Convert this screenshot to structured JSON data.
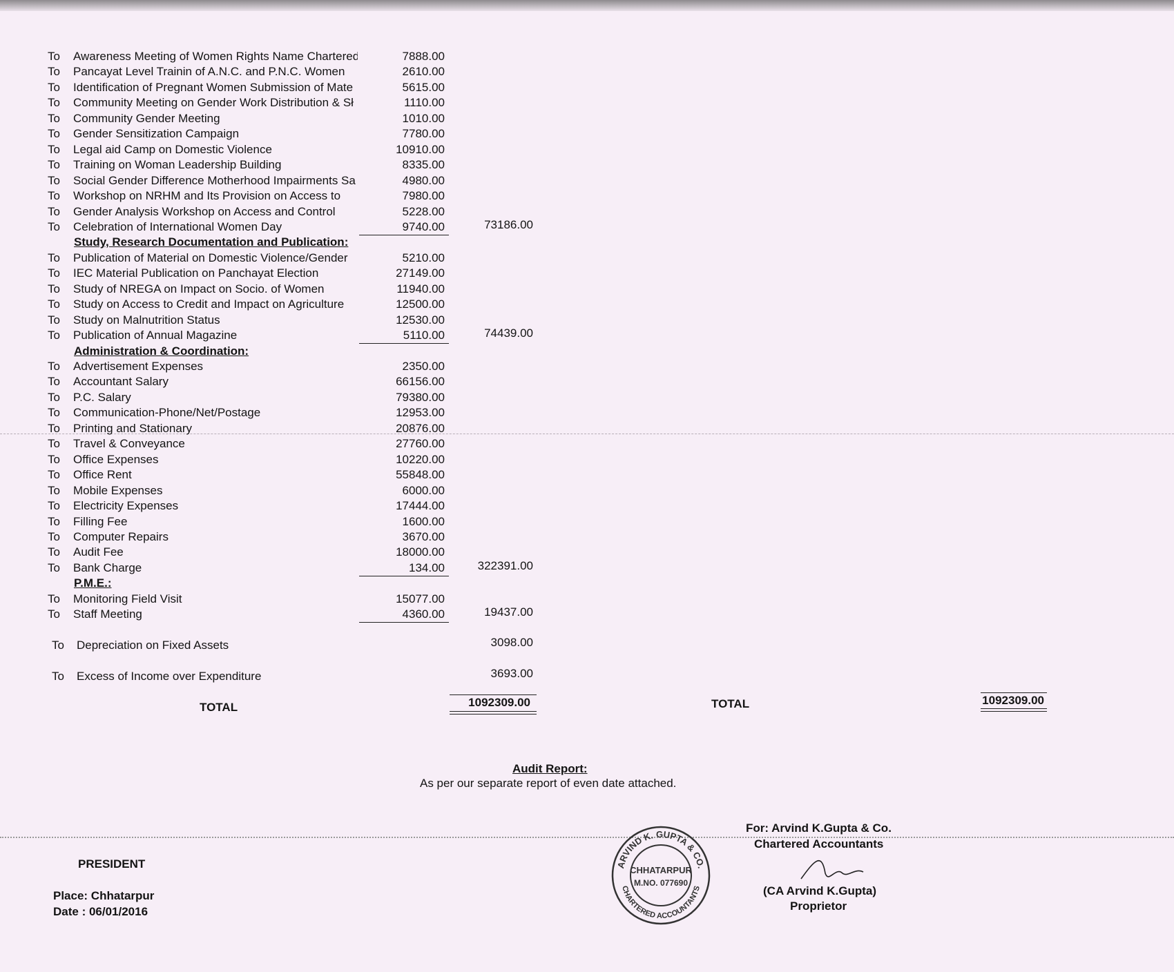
{
  "prefix": "To",
  "sections": [
    {
      "items": [
        {
          "label": "Awareness Meeting of Women Rights Name Chartered",
          "amount": "7888.00"
        },
        {
          "label": "Pancayat Level Trainin of A.N.C. and P.N.C. Women",
          "amount": "2610.00"
        },
        {
          "label": "Identification of Pregnant Women Submission of Mate",
          "amount": "5615.00"
        },
        {
          "label": "Community Meeting on Gender Work Distribution & Sł",
          "amount": "1110.00"
        },
        {
          "label": "Community Gender Meeting",
          "amount": "1010.00"
        },
        {
          "label": "Gender Sensitization Campaign",
          "amount": "7780.00"
        },
        {
          "label": "Legal aid Camp on Domestic Violence",
          "amount": "10910.00"
        },
        {
          "label": "Training on Woman Leadership Building",
          "amount": "8335.00"
        },
        {
          "label": "Social Gender Difference Motherhood Impairments Sa",
          "amount": "4980.00"
        },
        {
          "label": "Workshop on NRHM and Its Provision on Access to",
          "amount": "7980.00"
        },
        {
          "label": "Gender Analysis Workshop on Access and Control",
          "amount": "5228.00"
        },
        {
          "label": "Celebration of International Women Day",
          "amount": "9740.00"
        }
      ],
      "total": "73186.00"
    },
    {
      "heading": "Study, Research Documentation and Publication:",
      "items": [
        {
          "label": "Publication of Material on Domestic Violence/Gender",
          "amount": "5210.00"
        },
        {
          "label": "IEC Material Publication on Panchayat Election",
          "amount": "27149.00"
        },
        {
          "label": "Study of NREGA on Impact on Socio. of Women",
          "amount": "11940.00"
        },
        {
          "label": "Study on Access to Credit and Impact on Agriculture",
          "amount": "12500.00"
        },
        {
          "label": "Study on Malnutrition Status",
          "amount": "12530.00"
        },
        {
          "label": "Publication of Annual Magazine",
          "amount": "5110.00"
        }
      ],
      "total": "74439.00"
    },
    {
      "heading": "Administration & Coordination:",
      "items": [
        {
          "label": "Advertisement Expenses",
          "amount": "2350.00"
        },
        {
          "label": "Accountant Salary",
          "amount": "66156.00"
        },
        {
          "label": "P.C. Salary",
          "amount": "79380.00"
        },
        {
          "label": "Communication-Phone/Net/Postage",
          "amount": "12953.00"
        },
        {
          "label": "Printing and Stationary",
          "amount": "20876.00"
        },
        {
          "label": "Travel & Conveyance",
          "amount": "27760.00"
        },
        {
          "label": "Office Expenses",
          "amount": "10220.00"
        },
        {
          "label": "Office Rent",
          "amount": "55848.00"
        },
        {
          "label": "Mobile Expenses",
          "amount": "6000.00"
        },
        {
          "label": "Electricity Expenses",
          "amount": "17444.00"
        },
        {
          "label": "Filling Fee",
          "amount": "1600.00"
        },
        {
          "label": "Computer Repairs",
          "amount": "3670.00"
        },
        {
          "label": "Audit Fee",
          "amount": "18000.00"
        },
        {
          "label": "Bank Charge",
          "amount": "134.00"
        }
      ],
      "total": "322391.00"
    },
    {
      "heading": "P.M.E.:",
      "items": [
        {
          "label": "Monitoring Field Visit",
          "amount": "15077.00"
        },
        {
          "label": "Staff Meeting",
          "amount": "4360.00"
        }
      ],
      "total": "19437.00"
    }
  ],
  "singles": [
    {
      "label": "Depreciation on Fixed Assets",
      "total": "3098.00"
    },
    {
      "label": "Excess of Income over Expenditure",
      "total": "3693.00"
    }
  ],
  "total_left": {
    "label": "TOTAL",
    "value": "1092309.00"
  },
  "total_right": {
    "label": "TOTAL",
    "value": "1092309.00"
  },
  "audit": {
    "heading": "Audit Report:",
    "text": "As per our separate report of even date attached."
  },
  "auditor": {
    "firm": "For: Arvind K.Gupta & Co.",
    "role": "Chartered Accountants",
    "name": "(CA Arvind K.Gupta)",
    "title": "Proprietor"
  },
  "stamp": {
    "outer_top": "ARVIND K. GUPTA & CO.",
    "outer_bottom": "CHARTERED ACCOUNTANTS",
    "city": "CHHATARPUR",
    "mno": "M.NO. 077690"
  },
  "signatory": {
    "title": "PRESIDENT",
    "place": "Place: Chhatarpur",
    "date": "Date  : 06/01/2016"
  }
}
